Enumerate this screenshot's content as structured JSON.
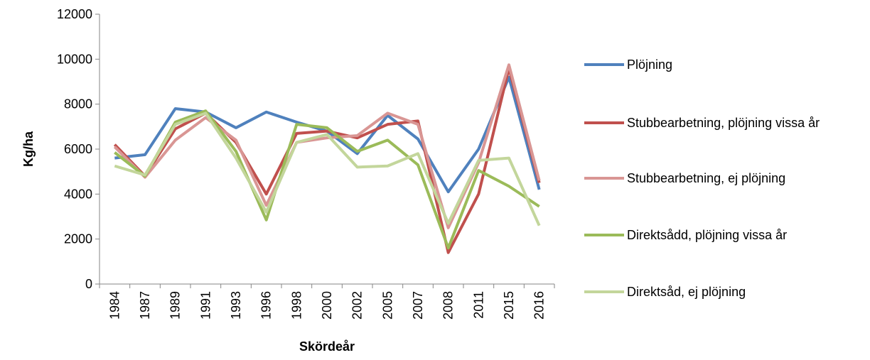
{
  "chart_data": {
    "type": "line",
    "x_label": "Skördeår",
    "y_label": "Kg/ha",
    "categories": [
      "1984",
      "1987",
      "1989",
      "1991",
      "1993",
      "1996",
      "1998",
      "2000",
      "2002",
      "2005",
      "2007",
      "2008",
      "2011",
      "2015",
      "2016"
    ],
    "ylim": [
      0,
      12000
    ],
    "yticks": [
      0,
      2000,
      4000,
      6000,
      8000,
      10000,
      12000
    ],
    "grid": false,
    "legend": "right",
    "series": [
      {
        "name": "Plöjning",
        "color": "#4f81bd",
        "values": [
          5600,
          5750,
          7800,
          7650,
          6950,
          7650,
          7200,
          6800,
          5800,
          7500,
          6450,
          4100,
          6000,
          9200,
          4200
        ]
      },
      {
        "name": "Stubbearbetning, plöjning vissa år",
        "color": "#c0504d",
        "values": [
          6200,
          4800,
          6900,
          7600,
          6300,
          4000,
          6700,
          6800,
          6500,
          7100,
          7250,
          1400,
          4000,
          9600,
          4500
        ]
      },
      {
        "name": "Stubbearbetning, ej plöjning",
        "color": "#d99694",
        "values": [
          6100,
          4750,
          6400,
          7400,
          6400,
          3500,
          6300,
          6500,
          6600,
          7600,
          7100,
          2500,
          5400,
          9750,
          4600
        ]
      },
      {
        "name": "Direktsådd, plöjning vissa år",
        "color": "#9bbb59",
        "values": [
          5850,
          4800,
          7200,
          7700,
          5900,
          2850,
          7100,
          6950,
          5900,
          6400,
          5300,
          1600,
          5050,
          4350,
          3450
        ]
      },
      {
        "name": "Direktsåd, ej plöjning",
        "color": "#c3d69b",
        "values": [
          5250,
          4850,
          7100,
          7600,
          5600,
          3200,
          6300,
          6650,
          5200,
          5250,
          5800,
          2700,
          5500,
          5600,
          2600
        ]
      }
    ]
  }
}
